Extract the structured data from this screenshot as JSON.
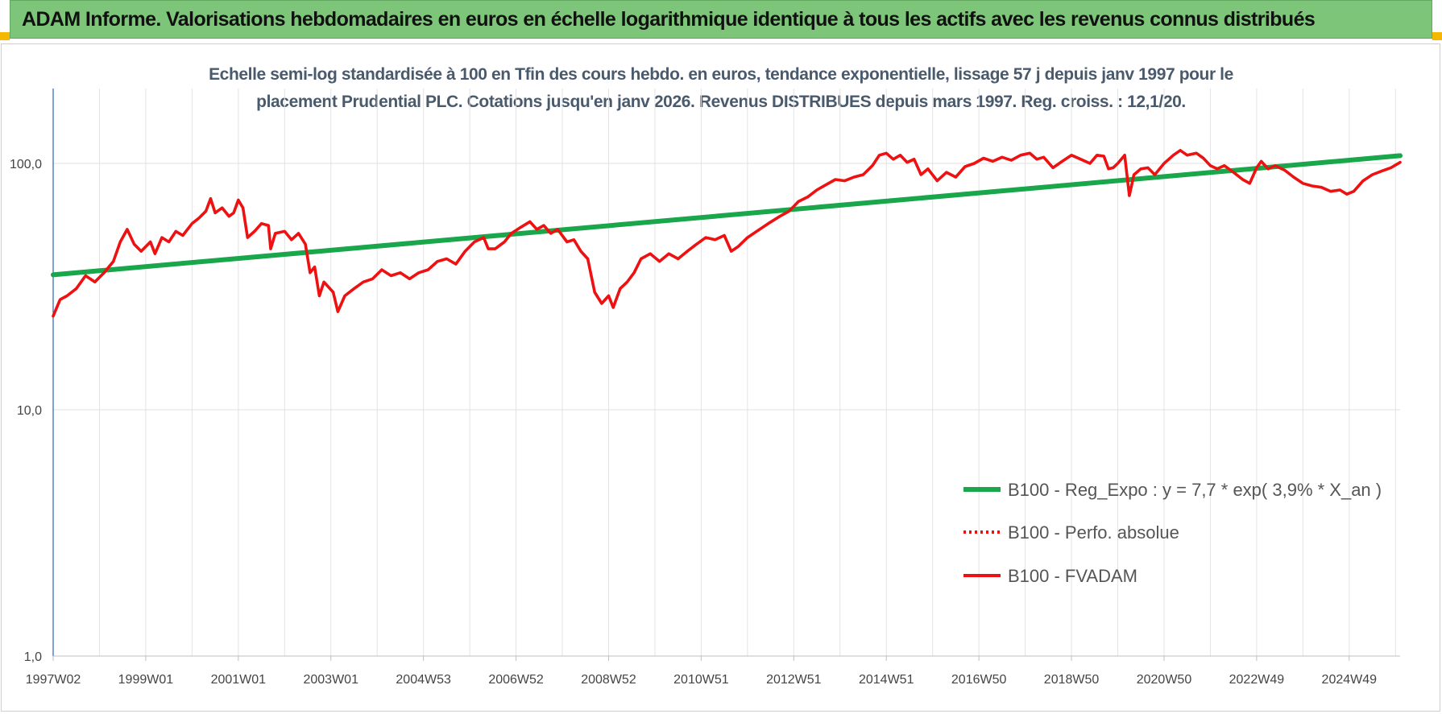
{
  "header": {
    "title": "ADAM Informe. Valorisations hebdomadaires en euros en échelle logarithmique identique à tous les actifs avec les revenus connus distribués"
  },
  "colors": {
    "banner": "#7dc679",
    "trend": "#1aa64a",
    "series": "#ee1111",
    "corner": "#f5b800"
  },
  "chart_data": {
    "type": "line",
    "subtitle_line1": "Echelle semi-log standardisée à 100 en Tfin des cours hebdo. en euros, tendance exponentielle, lissage 57 j depuis janv 1997 pour le",
    "subtitle_line2": "placement Prudential PLC. Cotations jusqu'en janv 2026. Revenus DISTRIBUES depuis mars 1997. Reg. croiss. : 12,1/20.",
    "y_scale": "log",
    "ylim": [
      1,
      200
    ],
    "xlim": [
      1997.0,
      2026.1
    ],
    "grid": true,
    "legend_position": "bottom-right",
    "y_ticks": [
      {
        "value": 1,
        "label": "1,0"
      },
      {
        "value": 10,
        "label": "10,0"
      },
      {
        "value": 100,
        "label": "100,0"
      }
    ],
    "x_ticks": [
      {
        "t": 1997.0,
        "label": "1997W02"
      },
      {
        "t": 1999.0,
        "label": "1999W01"
      },
      {
        "t": 2001.0,
        "label": "2001W01"
      },
      {
        "t": 2003.0,
        "label": "2003W01"
      },
      {
        "t": 2005.0,
        "label": "2004W53"
      },
      {
        "t": 2007.0,
        "label": "2006W52"
      },
      {
        "t": 2009.0,
        "label": "2008W52"
      },
      {
        "t": 2011.0,
        "label": "2010W51"
      },
      {
        "t": 2013.0,
        "label": "2012W51"
      },
      {
        "t": 2015.0,
        "label": "2014W51"
      },
      {
        "t": 2017.0,
        "label": "2016W50"
      },
      {
        "t": 2019.0,
        "label": "2018W50"
      },
      {
        "t": 2021.0,
        "label": "2020W50"
      },
      {
        "t": 2023.0,
        "label": "2022W49"
      },
      {
        "t": 2025.0,
        "label": "2024W49"
      }
    ],
    "series": [
      {
        "name": "B100 - Reg_Expo : y = 7,7 * exp( 3,9% *  X_an )",
        "style": "solid-thick",
        "points": [
          [
            1997.0,
            35.3
          ],
          [
            2026.1,
            107.5
          ]
        ]
      },
      {
        "name": "B100 - Perfo. absolue",
        "style": "dotted",
        "points": []
      },
      {
        "name": "B100 - FVADAM",
        "style": "solid",
        "points": [
          [
            1997.0,
            24
          ],
          [
            1997.15,
            28
          ],
          [
            1997.3,
            29
          ],
          [
            1997.5,
            31
          ],
          [
            1997.7,
            35
          ],
          [
            1997.9,
            33
          ],
          [
            1998.1,
            36
          ],
          [
            1998.3,
            40
          ],
          [
            1998.45,
            48
          ],
          [
            1998.6,
            54
          ],
          [
            1998.75,
            47
          ],
          [
            1998.9,
            44
          ],
          [
            1999.1,
            48
          ],
          [
            1999.2,
            43
          ],
          [
            1999.35,
            50
          ],
          [
            1999.5,
            48
          ],
          [
            1999.65,
            53
          ],
          [
            1999.8,
            51
          ],
          [
            2000.0,
            57
          ],
          [
            2000.15,
            60
          ],
          [
            2000.3,
            64
          ],
          [
            2000.4,
            72
          ],
          [
            2000.5,
            63
          ],
          [
            2000.65,
            66
          ],
          [
            2000.8,
            61
          ],
          [
            2000.9,
            63
          ],
          [
            2001.0,
            71
          ],
          [
            2001.1,
            66
          ],
          [
            2001.2,
            50
          ],
          [
            2001.35,
            53
          ],
          [
            2001.5,
            57
          ],
          [
            2001.65,
            56
          ],
          [
            2001.7,
            45
          ],
          [
            2001.8,
            52
          ],
          [
            2002.0,
            53
          ],
          [
            2002.15,
            49
          ],
          [
            2002.3,
            52
          ],
          [
            2002.45,
            47
          ],
          [
            2002.55,
            36
          ],
          [
            2002.65,
            38
          ],
          [
            2002.75,
            29
          ],
          [
            2002.85,
            33
          ],
          [
            2003.05,
            30
          ],
          [
            2003.15,
            25
          ],
          [
            2003.3,
            29
          ],
          [
            2003.5,
            31
          ],
          [
            2003.7,
            33
          ],
          [
            2003.9,
            34
          ],
          [
            2004.1,
            37
          ],
          [
            2004.3,
            35
          ],
          [
            2004.5,
            36
          ],
          [
            2004.7,
            34
          ],
          [
            2004.9,
            36
          ],
          [
            2005.1,
            37
          ],
          [
            2005.3,
            40
          ],
          [
            2005.5,
            41
          ],
          [
            2005.7,
            39
          ],
          [
            2005.9,
            44
          ],
          [
            2006.1,
            48
          ],
          [
            2006.3,
            50
          ],
          [
            2006.4,
            45
          ],
          [
            2006.55,
            45
          ],
          [
            2006.75,
            48
          ],
          [
            2006.9,
            52
          ],
          [
            2007.1,
            55
          ],
          [
            2007.3,
            58
          ],
          [
            2007.45,
            54
          ],
          [
            2007.6,
            56
          ],
          [
            2007.75,
            52
          ],
          [
            2007.9,
            54
          ],
          [
            2008.1,
            48
          ],
          [
            2008.25,
            49
          ],
          [
            2008.4,
            44
          ],
          [
            2008.55,
            41
          ],
          [
            2008.7,
            30
          ],
          [
            2008.85,
            27
          ],
          [
            2009.0,
            29
          ],
          [
            2009.1,
            26
          ],
          [
            2009.25,
            31
          ],
          [
            2009.4,
            33
          ],
          [
            2009.55,
            36
          ],
          [
            2009.7,
            41
          ],
          [
            2009.9,
            43
          ],
          [
            2010.1,
            40
          ],
          [
            2010.3,
            43
          ],
          [
            2010.5,
            41
          ],
          [
            2010.7,
            44
          ],
          [
            2010.9,
            47
          ],
          [
            2011.1,
            50
          ],
          [
            2011.3,
            49
          ],
          [
            2011.5,
            51
          ],
          [
            2011.65,
            44
          ],
          [
            2011.8,
            46
          ],
          [
            2012.0,
            50
          ],
          [
            2012.2,
            53
          ],
          [
            2012.45,
            57
          ],
          [
            2012.7,
            61
          ],
          [
            2012.9,
            64
          ],
          [
            2013.1,
            70
          ],
          [
            2013.3,
            73
          ],
          [
            2013.5,
            78
          ],
          [
            2013.7,
            82
          ],
          [
            2013.9,
            86
          ],
          [
            2014.1,
            85
          ],
          [
            2014.3,
            88
          ],
          [
            2014.5,
            90
          ],
          [
            2014.7,
            98
          ],
          [
            2014.85,
            108
          ],
          [
            2015.0,
            110
          ],
          [
            2015.15,
            104
          ],
          [
            2015.3,
            108
          ],
          [
            2015.45,
            101
          ],
          [
            2015.6,
            104
          ],
          [
            2015.75,
            90
          ],
          [
            2015.9,
            95
          ],
          [
            2016.1,
            85
          ],
          [
            2016.3,
            92
          ],
          [
            2016.5,
            88
          ],
          [
            2016.7,
            97
          ],
          [
            2016.9,
            100
          ],
          [
            2017.1,
            105
          ],
          [
            2017.3,
            102
          ],
          [
            2017.5,
            106
          ],
          [
            2017.7,
            103
          ],
          [
            2017.9,
            108
          ],
          [
            2018.1,
            110
          ],
          [
            2018.25,
            104
          ],
          [
            2018.4,
            106
          ],
          [
            2018.6,
            96
          ],
          [
            2018.8,
            102
          ],
          [
            2019.0,
            108
          ],
          [
            2019.2,
            104
          ],
          [
            2019.4,
            100
          ],
          [
            2019.55,
            108
          ],
          [
            2019.7,
            107
          ],
          [
            2019.8,
            95
          ],
          [
            2019.9,
            96
          ],
          [
            2020.0,
            100
          ],
          [
            2020.15,
            108
          ],
          [
            2020.25,
            74
          ],
          [
            2020.35,
            90
          ],
          [
            2020.5,
            95
          ],
          [
            2020.65,
            96
          ],
          [
            2020.8,
            90
          ],
          [
            2021.0,
            100
          ],
          [
            2021.2,
            108
          ],
          [
            2021.35,
            113
          ],
          [
            2021.5,
            108
          ],
          [
            2021.7,
            110
          ],
          [
            2021.85,
            105
          ],
          [
            2022.0,
            98
          ],
          [
            2022.15,
            95
          ],
          [
            2022.3,
            98
          ],
          [
            2022.5,
            92
          ],
          [
            2022.7,
            86
          ],
          [
            2022.85,
            83
          ],
          [
            2023.0,
            96
          ],
          [
            2023.1,
            102
          ],
          [
            2023.25,
            95
          ],
          [
            2023.4,
            98
          ],
          [
            2023.6,
            94
          ],
          [
            2023.8,
            88
          ],
          [
            2024.0,
            83
          ],
          [
            2024.2,
            81
          ],
          [
            2024.4,
            80
          ],
          [
            2024.6,
            77
          ],
          [
            2024.8,
            78
          ],
          [
            2024.95,
            75
          ],
          [
            2025.1,
            77
          ],
          [
            2025.3,
            85
          ],
          [
            2025.5,
            90
          ],
          [
            2025.7,
            93
          ],
          [
            2025.9,
            96
          ],
          [
            2026.1,
            101
          ]
        ]
      }
    ]
  }
}
